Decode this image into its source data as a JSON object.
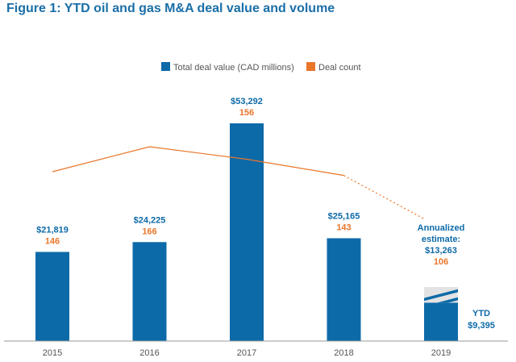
{
  "figure": {
    "title": "Figure 1: YTD oil and gas M&A deal value and volume"
  },
  "colors": {
    "bar": "#0d6aa8",
    "line": "#e8762b",
    "title": "#1a6fa8",
    "hatch": "#e3e3e3"
  },
  "chart_data": {
    "type": "bar",
    "title": "Figure 1: YTD oil and gas M&A deal value and volume",
    "xlabel": "",
    "ylabel": "",
    "legend_position": "top-center",
    "grid": false,
    "categories": [
      "2015",
      "2016",
      "2017",
      "2018",
      "2019"
    ],
    "series": [
      {
        "name": "Total deal value (CAD millions)",
        "kind": "bar",
        "values": [
          21819,
          24225,
          53292,
          25165,
          9395
        ],
        "labels": [
          "$21,819",
          "$24,225",
          "$53,292",
          "$25,165",
          "$9,395"
        ]
      },
      {
        "name": "Deal count",
        "kind": "line",
        "values": [
          146,
          166,
          156,
          143,
          106
        ],
        "labels": [
          "146",
          "166",
          "156",
          "143",
          "106"
        ],
        "dotted_last_segment": true
      }
    ],
    "annualized_estimate": {
      "category": "2019",
      "value": 13263,
      "label_lines": [
        "Annualized",
        "estimate:",
        "$13,263"
      ],
      "count": "106"
    },
    "ytd_label": {
      "category": "2019",
      "lines": [
        "YTD",
        "$9,395"
      ]
    }
  }
}
